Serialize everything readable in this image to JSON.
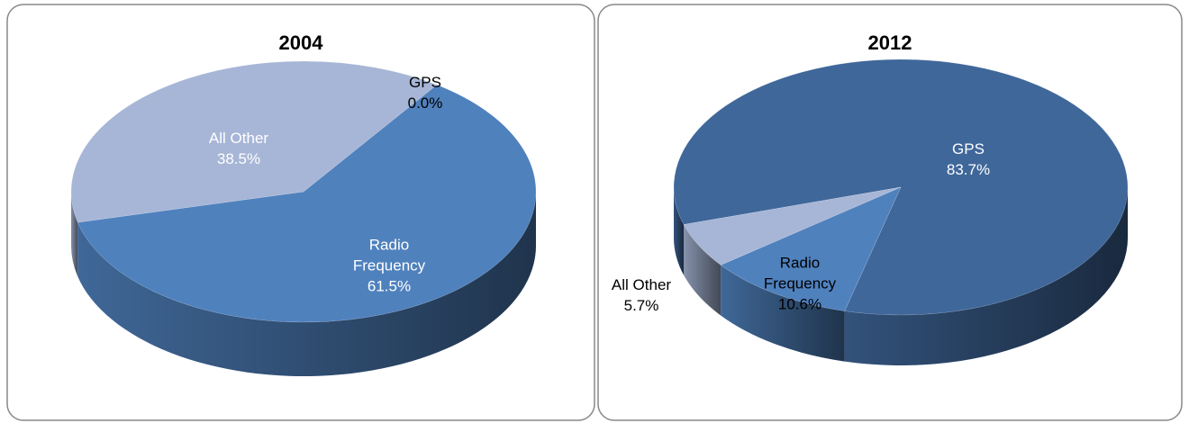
{
  "chart_data": [
    {
      "type": "pie",
      "title": "2004",
      "categories": [
        "GPS",
        "Radio Frequency",
        "All Other"
      ],
      "values": [
        0,
        61.5,
        38.5
      ],
      "value_labels": [
        "0.0%",
        "61.5%",
        "38.5%"
      ],
      "colors": [
        "#3f679a",
        "#4f81bd",
        "#a7b6d6"
      ]
    },
    {
      "type": "pie",
      "title": "2012",
      "categories": [
        "GPS",
        "Radio Frequency",
        "All Other"
      ],
      "values": [
        83.7,
        10.6,
        5.7
      ],
      "value_labels": [
        "83.7%",
        "10.6%",
        "5.7%"
      ],
      "colors": [
        "#3f679a",
        "#4f81bd",
        "#a7b6d6"
      ]
    }
  ]
}
